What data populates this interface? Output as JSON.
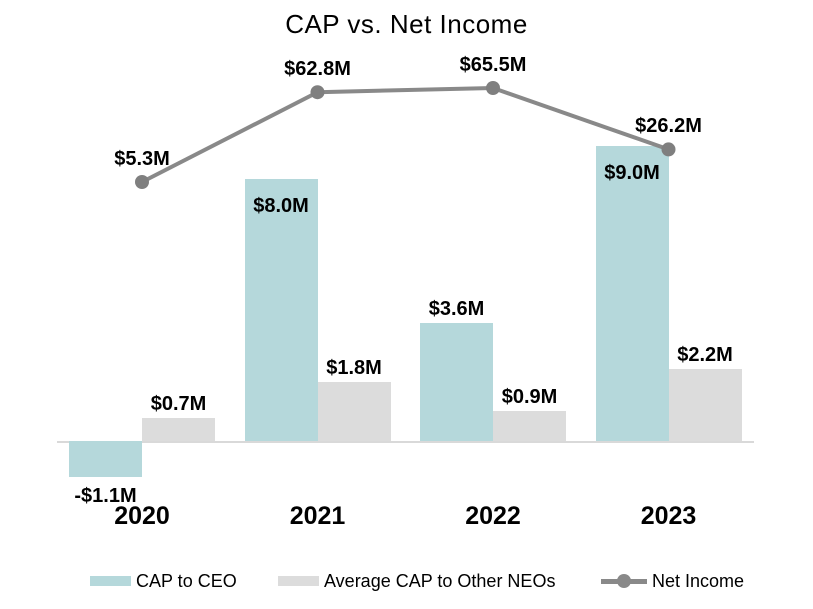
{
  "chart_data": {
    "type": "combo-bar-line",
    "title": "CAP vs. Net Income",
    "categories": [
      "2020",
      "2021",
      "2022",
      "2023"
    ],
    "series": [
      {
        "name": "CAP to CEO",
        "type": "bar",
        "color": "#b5d8db",
        "values": [
          -1.1,
          8.0,
          3.6,
          9.0
        ],
        "labels": [
          "-$1.1M",
          "$8.0M",
          "$3.6M",
          "$9.0M"
        ]
      },
      {
        "name": "Average CAP to Other NEOs",
        "type": "bar",
        "color": "#dcdcdc",
        "values": [
          0.7,
          1.8,
          0.9,
          2.2
        ],
        "labels": [
          "$0.7M",
          "$1.8M",
          "$0.9M",
          "$2.2M"
        ]
      },
      {
        "name": "Net Income",
        "type": "line",
        "color": "#898989",
        "marker_color": "#7f7f7f",
        "values": [
          5.3,
          62.8,
          65.5,
          26.2
        ],
        "labels": [
          "$5.3M",
          "$62.8M",
          "$65.5M",
          "$26.2M"
        ]
      }
    ],
    "legend_position": "bottom",
    "gridlines": false,
    "value_axis_visible": false,
    "text_color": "#000000",
    "axis_line_color": "#d9d9d9",
    "background_color": "#ffffff"
  }
}
